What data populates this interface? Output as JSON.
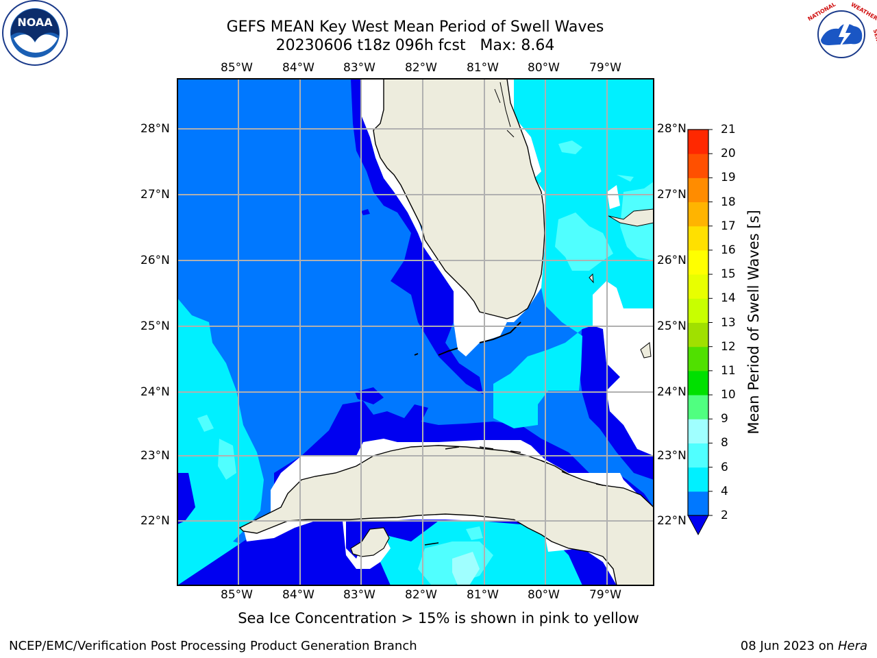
{
  "title": {
    "line1": "GEFS MEAN Key West Mean Period of Swell Waves",
    "line2": "20230606 t18z 096h fcst   Max: 8.64"
  },
  "logos": {
    "left": {
      "name": "noaa-logo",
      "text": "NOAA",
      "ring_text": "NATIONAL OCEANIC AND ATMOSPHERIC ADMINISTRATION · U.S. DEPARTMENT OF COMMERCE"
    },
    "right": {
      "name": "nws-logo",
      "ring_text": "NATIONAL WEATHER SERVICE"
    }
  },
  "map": {
    "longitude_labels": [
      "85°W",
      "84°W",
      "83°W",
      "82°W",
      "81°W",
      "80°W",
      "79°W"
    ],
    "latitude_labels": [
      "28°N",
      "27°N",
      "26°N",
      "25°N",
      "24°N",
      "23°N",
      "22°N"
    ],
    "colors": {
      "land": "#edecdd",
      "shallow_mask": "#ffffff",
      "band_0_2": "#0000f0",
      "band_2_4": "#0078ff",
      "band_4_6": "#00f0ff",
      "band_6_8": "#50ffff",
      "grid": "#b0b0b0"
    }
  },
  "colorbar": {
    "title": "Mean Period of Swell Waves [s]",
    "ticks": [
      "2",
      "4",
      "6",
      "8",
      "9",
      "10",
      "11",
      "12",
      "13",
      "14",
      "15",
      "16",
      "17",
      "18",
      "19",
      "20",
      "21"
    ],
    "colors": [
      "#0078ff",
      "#00f0ff",
      "#50ffff",
      "#a0ffff",
      "#50ff80",
      "#00e000",
      "#50e000",
      "#a0e000",
      "#c8ff00",
      "#e8ff00",
      "#ffff00",
      "#ffe000",
      "#ffb400",
      "#ff8c00",
      "#ff5000",
      "#ff2800",
      "#ff0000"
    ],
    "under_color": "#0000f0"
  },
  "note": "Sea Ice Concentration > 15% is shown in pink to yellow",
  "footer": {
    "left": "NCEP/EMC/Verification Post Processing Product Generation Branch",
    "right_date": "08 Jun 2023 on",
    "right_host": "Hera"
  }
}
